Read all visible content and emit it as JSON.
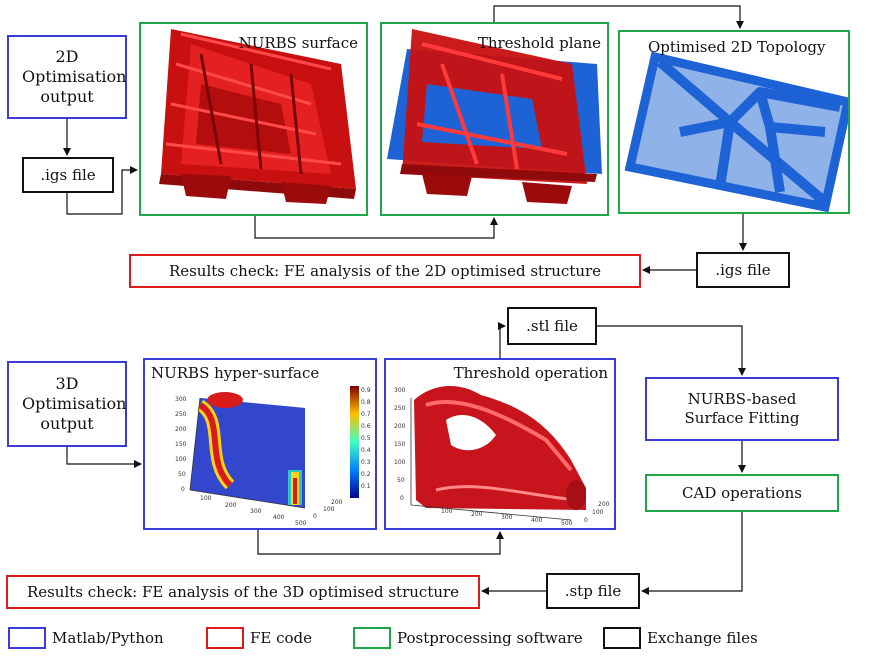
{
  "top": {
    "input_box": "2D Optimisation output",
    "igs_in": ".igs file",
    "panel1_title": "NURBS surface",
    "panel2_title": "Threshold plane",
    "panel3_title": "Optimised 2D Topology",
    "igs_out": ".igs file",
    "results": "Results check: FE analysis of the 2D optimised structure"
  },
  "bottom": {
    "input_box": "3D Optimisation output",
    "panel1_title": "NURBS hyper-surface",
    "panel2_title": "Threshold operation",
    "stl": ".stl file",
    "fitting": "NURBS-based Surface Fitting",
    "cad": "CAD operations",
    "stp": ".stp file",
    "results": "Results check: FE analysis of the 3D optimised structure"
  },
  "legend": [
    {
      "label": "Matlab/Python",
      "color": "#3b3bd8"
    },
    {
      "label": "FE code",
      "color": "#e01b1b"
    },
    {
      "label": "Postprocessing software",
      "color": "#1ea84a"
    },
    {
      "label": "Exchange files",
      "color": "#111111"
    }
  ],
  "plot_ticks": {
    "hyper_y": [
      "300",
      "250",
      "200",
      "150",
      "100",
      "50",
      "0"
    ],
    "hyper_x1": [
      "100",
      "200",
      "300",
      "400",
      "500"
    ],
    "hyper_x2": [
      "0",
      "100",
      "200"
    ],
    "hyper_cbar": [
      "0.9",
      "0.8",
      "0.7",
      "0.6",
      "0.5",
      "0.4",
      "0.3",
      "0.2",
      "0.1"
    ],
    "thr_y": [
      "300",
      "250",
      "200",
      "150",
      "100",
      "50",
      "0"
    ],
    "thr_x1": [
      "100",
      "200",
      "300",
      "400",
      "500"
    ],
    "thr_x2": [
      "0",
      "100",
      "200"
    ]
  }
}
